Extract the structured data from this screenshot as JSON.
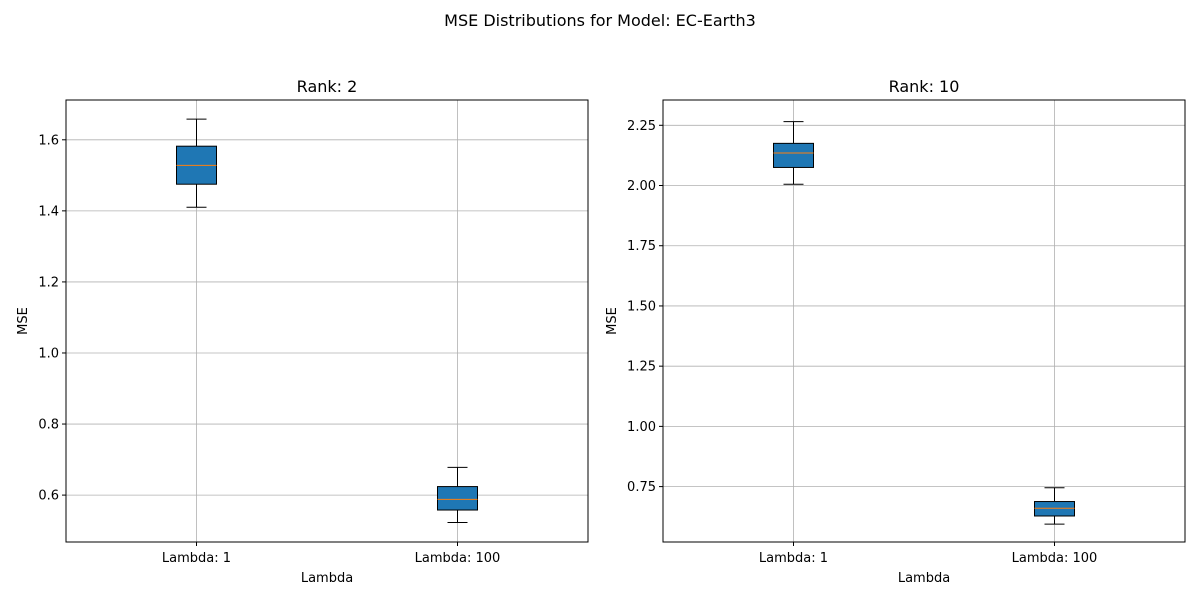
{
  "title": "MSE Distributions for Model: EC-Earth3",
  "colors": {
    "box_fill": "#1f77b4",
    "median": "#ff7f0e",
    "grid": "#b0b0b0",
    "edge": "#000000"
  },
  "chart_data": [
    {
      "type": "box",
      "title": "Rank: 2",
      "xlabel": "Lambda",
      "ylabel": "MSE",
      "categories": [
        "Lambda: 1",
        "Lambda: 100"
      ],
      "ylim": [
        0.468,
        1.712
      ],
      "yticks": [
        0.6,
        0.8,
        1.0,
        1.2,
        1.4,
        1.6
      ],
      "ytick_labels": [
        "0.6",
        "0.8",
        "1.0",
        "1.2",
        "1.4",
        "1.6"
      ],
      "grid": true,
      "boxes": [
        {
          "category": "Lambda: 1",
          "whisker_low": 1.41,
          "q1": 1.475,
          "median": 1.528,
          "q3": 1.582,
          "whisker_high": 1.658
        },
        {
          "category": "Lambda: 100",
          "whisker_low": 0.523,
          "q1": 0.558,
          "median": 0.588,
          "q3": 0.624,
          "whisker_high": 0.678
        }
      ]
    },
    {
      "type": "box",
      "title": "Rank: 10",
      "xlabel": "Lambda",
      "ylabel": "MSE",
      "categories": [
        "Lambda: 1",
        "Lambda: 100"
      ],
      "ylim": [
        0.52,
        2.355
      ],
      "yticks": [
        0.75,
        1.0,
        1.25,
        1.5,
        1.75,
        2.0,
        2.25
      ],
      "ytick_labels": [
        "0.75",
        "1.00",
        "1.25",
        "1.50",
        "1.75",
        "2.00",
        "2.25"
      ],
      "grid": true,
      "boxes": [
        {
          "category": "Lambda: 1",
          "whisker_low": 2.005,
          "q1": 2.075,
          "median": 2.135,
          "q3": 2.175,
          "whisker_high": 2.265
        },
        {
          "category": "Lambda: 100",
          "whisker_low": 0.594,
          "q1": 0.628,
          "median": 0.66,
          "q3": 0.688,
          "whisker_high": 0.745
        }
      ]
    }
  ]
}
